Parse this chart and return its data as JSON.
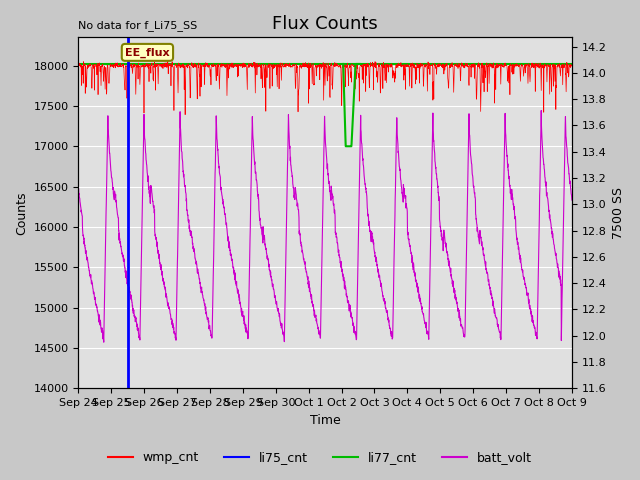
{
  "title": "Flux Counts",
  "no_data_label": "No data for f_Li75_SS",
  "xlabel": "Time",
  "ylabel_left": "Counts",
  "ylabel_right": "7500 SS",
  "annotation_text": "EE_flux",
  "ylim_left": [
    14000,
    18350
  ],
  "ylim_right": [
    11.6,
    14.27
  ],
  "yticks_left": [
    14000,
    14500,
    15000,
    15500,
    16000,
    16500,
    17000,
    17500,
    18000
  ],
  "yticks_right": [
    11.6,
    11.8,
    12.0,
    12.2,
    12.4,
    12.6,
    12.8,
    13.0,
    13.2,
    13.4,
    13.6,
    13.8,
    14.0,
    14.2
  ],
  "xtick_labels": [
    "Sep 24",
    "Sep 25",
    "Sep 26",
    "Sep 27",
    "Sep 28",
    "Sep 29",
    "Sep 30",
    "Oct 1",
    "Oct 2",
    "Oct 3",
    "Oct 4",
    "Oct 5",
    "Oct 6",
    "Oct 7",
    "Oct 8",
    "Oct 9"
  ],
  "wmp_color": "#ff0000",
  "li75_color": "#0000ff",
  "li77_color": "#00bb00",
  "batt_color": "#cc00cc",
  "fig_facecolor": "#c8c8c8",
  "plot_facecolor": "#e0e0e0",
  "title_fontsize": 13,
  "label_fontsize": 9,
  "tick_fontsize": 8,
  "legend_fontsize": 9
}
